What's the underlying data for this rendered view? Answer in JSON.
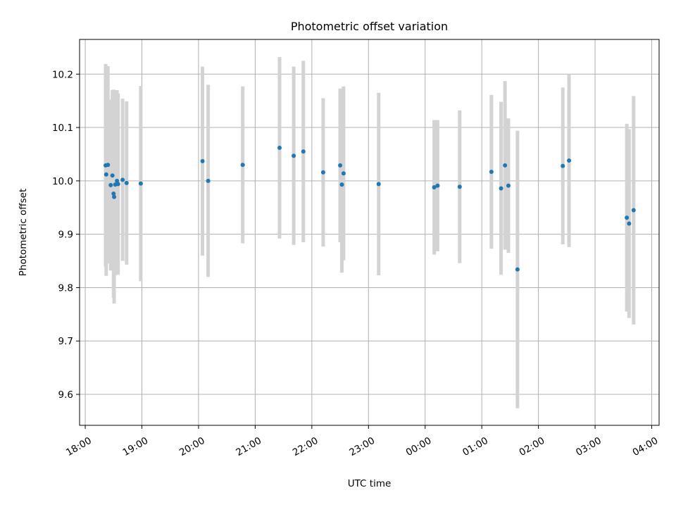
{
  "chart_data": {
    "type": "scatter",
    "title": "Photometric offset variation",
    "xlabel": "UTC time",
    "ylabel": "Photometric offset",
    "x_ticks": [
      "18:00",
      "19:00",
      "20:00",
      "21:00",
      "22:00",
      "23:00",
      "00:00",
      "01:00",
      "02:00",
      "03:00",
      "04:00"
    ],
    "x_tick_hours": [
      0,
      1,
      2,
      3,
      4,
      5,
      6,
      7,
      8,
      9,
      10
    ],
    "x_unit": "hours after 18:00 UTC",
    "xlim": [
      -0.1,
      10.13
    ],
    "y_ticks": [
      9.6,
      9.7,
      9.8,
      9.9,
      10.0,
      10.1,
      10.2
    ],
    "ylim": [
      9.542,
      10.265
    ],
    "grid": true,
    "marker_color": "#1f77b4",
    "errorbar_color": "#d3d3d3",
    "points": [
      {
        "x": 0.36,
        "y": 10.029,
        "err": 0.19
      },
      {
        "x": 0.37,
        "y": 10.012,
        "err": 0.19
      },
      {
        "x": 0.4,
        "y": 10.03,
        "err": 0.185
      },
      {
        "x": 0.45,
        "y": 9.992,
        "err": 0.16
      },
      {
        "x": 0.48,
        "y": 10.01,
        "err": 0.16
      },
      {
        "x": 0.5,
        "y": 9.976,
        "err": 0.195
      },
      {
        "x": 0.51,
        "y": 9.97,
        "err": 0.2
      },
      {
        "x": 0.53,
        "y": 9.993,
        "err": 0.17
      },
      {
        "x": 0.56,
        "y": 10.0,
        "err": 0.17
      },
      {
        "x": 0.58,
        "y": 9.994,
        "err": 0.17
      },
      {
        "x": 0.66,
        "y": 10.002,
        "err": 0.152
      },
      {
        "x": 0.73,
        "y": 9.996,
        "err": 0.153
      },
      {
        "x": 0.98,
        "y": 9.995,
        "err": 0.183
      },
      {
        "x": 2.07,
        "y": 10.037,
        "err": 0.177
      },
      {
        "x": 2.17,
        "y": 10.0,
        "err": 0.18
      },
      {
        "x": 2.78,
        "y": 10.03,
        "err": 0.147
      },
      {
        "x": 3.43,
        "y": 10.062,
        "err": 0.17
      },
      {
        "x": 3.68,
        "y": 10.047,
        "err": 0.167
      },
      {
        "x": 3.85,
        "y": 10.055,
        "err": 0.17
      },
      {
        "x": 4.2,
        "y": 10.016,
        "err": 0.139
      },
      {
        "x": 4.5,
        "y": 10.029,
        "err": 0.144
      },
      {
        "x": 4.53,
        "y": 9.993,
        "err": 0.165
      },
      {
        "x": 4.56,
        "y": 10.014,
        "err": 0.163
      },
      {
        "x": 5.18,
        "y": 9.994,
        "err": 0.171
      },
      {
        "x": 6.16,
        "y": 9.988,
        "err": 0.126
      },
      {
        "x": 6.22,
        "y": 9.991,
        "err": 0.123
      },
      {
        "x": 6.61,
        "y": 9.989,
        "err": 0.143
      },
      {
        "x": 7.17,
        "y": 10.017,
        "err": 0.144
      },
      {
        "x": 7.34,
        "y": 9.986,
        "err": 0.162
      },
      {
        "x": 7.41,
        "y": 10.029,
        "err": 0.158
      },
      {
        "x": 7.47,
        "y": 9.991,
        "err": 0.126
      },
      {
        "x": 7.63,
        "y": 9.834,
        "err": 0.26
      },
      {
        "x": 8.43,
        "y": 10.028,
        "err": 0.147
      },
      {
        "x": 8.54,
        "y": 10.038,
        "err": 0.162
      },
      {
        "x": 9.56,
        "y": 9.931,
        "err": 0.176
      },
      {
        "x": 9.6,
        "y": 9.92,
        "err": 0.177
      },
      {
        "x": 9.68,
        "y": 9.945,
        "err": 0.214
      }
    ]
  }
}
